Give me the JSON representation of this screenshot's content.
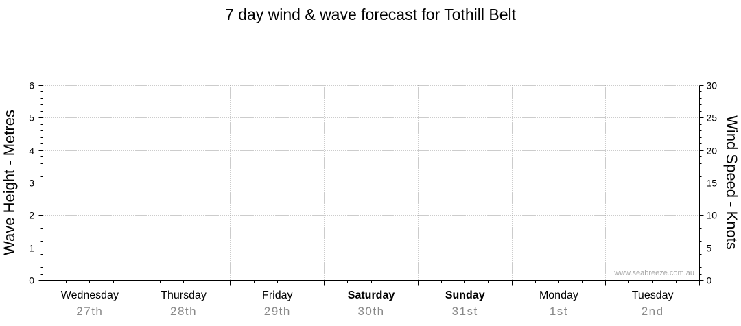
{
  "chart_data": {
    "type": "line",
    "title": "7 day wind & wave forecast for Tothill Belt",
    "ylabel": "Wave Height - Metres",
    "y2label": "Wind Speed - Knots",
    "ylim": [
      0,
      6
    ],
    "yticks": [
      0,
      1,
      2,
      3,
      4,
      5,
      6
    ],
    "y2lim": [
      0,
      30
    ],
    "y2ticks": [
      0,
      5,
      10,
      15,
      20,
      25,
      30
    ],
    "days": [
      {
        "day": "Wednesday",
        "date": "27th",
        "bold": false
      },
      {
        "day": "Thursday",
        "date": "28th",
        "bold": false
      },
      {
        "day": "Friday",
        "date": "29th",
        "bold": false
      },
      {
        "day": "Saturday",
        "date": "30th",
        "bold": true
      },
      {
        "day": "Sunday",
        "date": "31st",
        "bold": true
      },
      {
        "day": "Monday",
        "date": "1st",
        "bold": false
      },
      {
        "day": "Tuesday",
        "date": "2nd",
        "bold": false
      }
    ],
    "grid": true,
    "series": []
  },
  "watermark": "www.seabreeze.com.au",
  "colors": {
    "background": "#ffffff",
    "axis": "#000000",
    "grid": "#9a9a9a",
    "date_text": "#888888",
    "watermark": "#a8a8a8"
  }
}
